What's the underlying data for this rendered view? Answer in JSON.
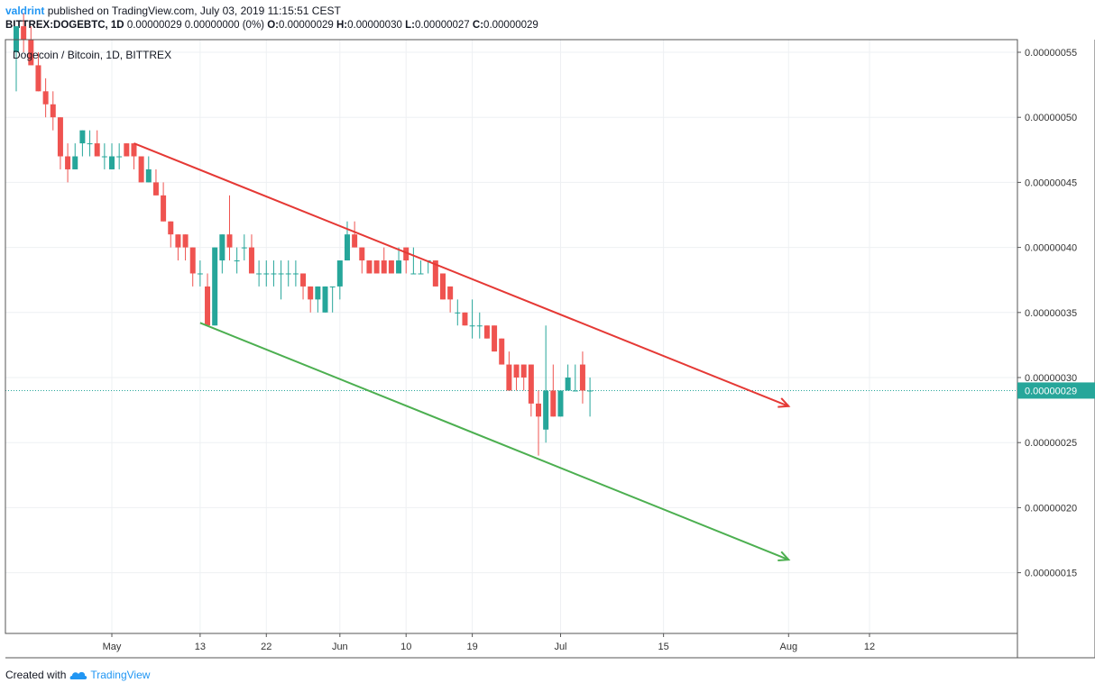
{
  "header": {
    "username": "valdrint",
    "published_text": "published on TradingView.com, July 03, 2019 11:15:51 CEST",
    "symbol": "BITTREX:DOGEBTC, 1D",
    "ohlc_text": "0.00000029 0.00000000 (0%)",
    "o_label": "O:",
    "o_value": "0.00000029",
    "h_label": "H:",
    "h_value": "0.00000030",
    "l_label": "L:",
    "l_value": "0.00000027",
    "c_label": "C:",
    "c_value": "0.00000029"
  },
  "footer": {
    "created_with": "Created with",
    "brand": "TradingView"
  },
  "chart_data": {
    "type": "candlestick",
    "title": "Dogecoin / Bitcoin, 1D, BITTREX",
    "colors": {
      "up": "#26a69a",
      "down": "#ef5350",
      "resistance": "#e53935",
      "support": "#4caf50",
      "grid": "#eef0f3",
      "axis": "#555555"
    },
    "y_axis": {
      "ticks": [
        "0.00000055",
        "0.00000050",
        "0.00000045",
        "0.00000040",
        "0.00000035",
        "0.00000030",
        "0.00000025",
        "0.00000020",
        "0.00000015"
      ],
      "ylim": [
        1e-07,
        5.7e-07
      ]
    },
    "x_axis": {
      "ticks": [
        "May",
        "13",
        "22",
        "Jun",
        "10",
        "19",
        "Jul",
        "15",
        "Aug",
        "12"
      ]
    },
    "last_price": {
      "value": 2.9e-07,
      "label": "0.00000029"
    },
    "candles": [
      [
        "2019-04-18",
        5.5e-07,
        5.7e-07,
        5.2e-07,
        5.7e-07
      ],
      [
        "2019-04-19",
        5.7e-07,
        5.8e-07,
        5.5e-07,
        5.6e-07
      ],
      [
        "2019-04-20",
        5.6e-07,
        5.7e-07,
        5.4e-07,
        5.4e-07
      ],
      [
        "2019-04-21",
        5.4e-07,
        5.5e-07,
        5.2e-07,
        5.2e-07
      ],
      [
        "2019-04-22",
        5.2e-07,
        5.3e-07,
        5e-07,
        5.1e-07
      ],
      [
        "2019-04-23",
        5.1e-07,
        5.2e-07,
        4.9e-07,
        5e-07
      ],
      [
        "2019-04-24",
        5e-07,
        5e-07,
        4.6e-07,
        4.7e-07
      ],
      [
        "2019-04-25",
        4.7e-07,
        4.8e-07,
        4.5e-07,
        4.6e-07
      ],
      [
        "2019-04-26",
        4.6e-07,
        4.8e-07,
        4.6e-07,
        4.7e-07
      ],
      [
        "2019-04-27",
        4.8e-07,
        4.9e-07,
        4.7e-07,
        4.9e-07
      ],
      [
        "2019-04-28",
        4.8e-07,
        4.9e-07,
        4.7e-07,
        4.8e-07
      ],
      [
        "2019-04-29",
        4.8e-07,
        4.9e-07,
        4.7e-07,
        4.7e-07
      ],
      [
        "2019-04-30",
        4.7e-07,
        4.8e-07,
        4.6e-07,
        4.7e-07
      ],
      [
        "2019-05-01",
        4.6e-07,
        4.8e-07,
        4.6e-07,
        4.7e-07
      ],
      [
        "2019-05-02",
        4.7e-07,
        4.8e-07,
        4.6e-07,
        4.7e-07
      ],
      [
        "2019-05-03",
        4.8e-07,
        4.8e-07,
        4.7e-07,
        4.7e-07
      ],
      [
        "2019-05-04",
        4.8e-07,
        4.8e-07,
        4.6e-07,
        4.7e-07
      ],
      [
        "2019-05-05",
        4.7e-07,
        4.7e-07,
        4.5e-07,
        4.5e-07
      ],
      [
        "2019-05-06",
        4.5e-07,
        4.7e-07,
        4.5e-07,
        4.6e-07
      ],
      [
        "2019-05-07",
        4.5e-07,
        4.6e-07,
        4.4e-07,
        4.4e-07
      ],
      [
        "2019-05-08",
        4.4e-07,
        4.5e-07,
        4.2e-07,
        4.2e-07
      ],
      [
        "2019-05-09",
        4.2e-07,
        4.2e-07,
        4e-07,
        4.1e-07
      ],
      [
        "2019-05-10",
        4.1e-07,
        4.1e-07,
        3.9e-07,
        4e-07
      ],
      [
        "2019-05-11",
        4.1e-07,
        4.1e-07,
        3.9e-07,
        4e-07
      ],
      [
        "2019-05-12",
        4e-07,
        4e-07,
        3.7e-07,
        3.8e-07
      ],
      [
        "2019-05-13",
        3.8e-07,
        3.9e-07,
        3.7e-07,
        3.8e-07
      ],
      [
        "2019-05-14",
        3.7e-07,
        3.8e-07,
        3.4e-07,
        3.4e-07
      ],
      [
        "2019-05-15",
        3.4e-07,
        4e-07,
        3.4e-07,
        4e-07
      ],
      [
        "2019-05-16",
        3.9e-07,
        4.1e-07,
        3.8e-07,
        4.1e-07
      ],
      [
        "2019-05-17",
        4.1e-07,
        4.4e-07,
        3.9e-07,
        4e-07
      ],
      [
        "2019-05-18",
        3.9e-07,
        4e-07,
        3.8e-07,
        3.9e-07
      ],
      [
        "2019-05-19",
        4e-07,
        4.1e-07,
        3.9e-07,
        4e-07
      ],
      [
        "2019-05-20",
        4e-07,
        4.1e-07,
        3.8e-07,
        3.8e-07
      ],
      [
        "2019-05-21",
        3.8e-07,
        3.9e-07,
        3.7e-07,
        3.8e-07
      ],
      [
        "2019-05-22",
        3.8e-07,
        3.9e-07,
        3.7e-07,
        3.8e-07
      ],
      [
        "2019-05-23",
        3.8e-07,
        3.9e-07,
        3.7e-07,
        3.8e-07
      ],
      [
        "2019-05-24",
        3.8e-07,
        3.9e-07,
        3.6e-07,
        3.8e-07
      ],
      [
        "2019-05-25",
        3.8e-07,
        3.9e-07,
        3.7e-07,
        3.8e-07
      ],
      [
        "2019-05-26",
        3.8e-07,
        3.9e-07,
        3.7e-07,
        3.8e-07
      ],
      [
        "2019-05-27",
        3.8e-07,
        3.8e-07,
        3.6e-07,
        3.7e-07
      ],
      [
        "2019-05-28",
        3.7e-07,
        3.7e-07,
        3.5e-07,
        3.6e-07
      ],
      [
        "2019-05-29",
        3.6e-07,
        3.7e-07,
        3.5e-07,
        3.7e-07
      ],
      [
        "2019-05-30",
        3.5e-07,
        3.7e-07,
        3.5e-07,
        3.7e-07
      ],
      [
        "2019-05-31",
        3.7e-07,
        3.7e-07,
        3.5e-07,
        3.7e-07
      ],
      [
        "2019-06-01",
        3.7e-07,
        3.9e-07,
        3.6e-07,
        3.9e-07
      ],
      [
        "2019-06-02",
        3.9e-07,
        4.2e-07,
        3.9e-07,
        4.1e-07
      ],
      [
        "2019-06-03",
        4.1e-07,
        4.2e-07,
        4e-07,
        4e-07
      ],
      [
        "2019-06-04",
        4e-07,
        4e-07,
        3.8e-07,
        3.9e-07
      ],
      [
        "2019-06-05",
        3.9e-07,
        3.9e-07,
        3.8e-07,
        3.8e-07
      ],
      [
        "2019-06-06",
        3.9e-07,
        3.9e-07,
        3.8e-07,
        3.8e-07
      ],
      [
        "2019-06-07",
        3.9e-07,
        4e-07,
        3.8e-07,
        3.8e-07
      ],
      [
        "2019-06-08",
        3.9e-07,
        3.9e-07,
        3.8e-07,
        3.8e-07
      ],
      [
        "2019-06-09",
        3.8e-07,
        4e-07,
        3.8e-07,
        3.9e-07
      ],
      [
        "2019-06-10",
        4e-07,
        4e-07,
        3.8e-07,
        3.9e-07
      ],
      [
        "2019-06-11",
        3.8e-07,
        4e-07,
        3.8e-07,
        3.8e-07
      ],
      [
        "2019-06-12",
        3.8e-07,
        3.9e-07,
        3.8e-07,
        3.8e-07
      ],
      [
        "2019-06-13",
        3.9e-07,
        3.9e-07,
        3.8e-07,
        3.9e-07
      ],
      [
        "2019-06-14",
        3.9e-07,
        3.9e-07,
        3.7e-07,
        3.7e-07
      ],
      [
        "2019-06-15",
        3.8e-07,
        3.8e-07,
        3.6e-07,
        3.6e-07
      ],
      [
        "2019-06-16",
        3.7e-07,
        3.7e-07,
        3.5e-07,
        3.6e-07
      ],
      [
        "2019-06-17",
        3.5e-07,
        3.6e-07,
        3.4e-07,
        3.5e-07
      ],
      [
        "2019-06-18",
        3.5e-07,
        3.5e-07,
        3.4e-07,
        3.4e-07
      ],
      [
        "2019-06-19",
        3.4e-07,
        3.6e-07,
        3.3e-07,
        3.4e-07
      ],
      [
        "2019-06-20",
        3.4e-07,
        3.5e-07,
        3.3e-07,
        3.4e-07
      ],
      [
        "2019-06-21",
        3.4e-07,
        3.4e-07,
        3.3e-07,
        3.3e-07
      ],
      [
        "2019-06-22",
        3.4e-07,
        3.4e-07,
        3.2e-07,
        3.2e-07
      ],
      [
        "2019-06-23",
        3.3e-07,
        3.3e-07,
        3.1e-07,
        3.1e-07
      ],
      [
        "2019-06-24",
        3.1e-07,
        3.2e-07,
        2.9e-07,
        2.9e-07
      ],
      [
        "2019-06-25",
        3.1e-07,
        3.1e-07,
        2.9e-07,
        3e-07
      ],
      [
        "2019-06-26",
        3.1e-07,
        3.1e-07,
        2.9e-07,
        3e-07
      ],
      [
        "2019-06-27",
        3.1e-07,
        3.1e-07,
        2.7e-07,
        2.8e-07
      ],
      [
        "2019-06-28",
        2.8e-07,
        2.9e-07,
        2.4e-07,
        2.7e-07
      ],
      [
        "2019-06-29",
        2.6e-07,
        3.4e-07,
        2.5e-07,
        2.9e-07
      ],
      [
        "2019-06-30",
        2.9e-07,
        3.1e-07,
        2.7e-07,
        2.7e-07
      ],
      [
        "2019-07-01",
        2.7e-07,
        2.9e-07,
        2.7e-07,
        2.9e-07
      ],
      [
        "2019-07-02",
        2.9e-07,
        3.1e-07,
        2.9e-07,
        3e-07
      ],
      [
        "2019-07-03",
        2.9e-07,
        3.1e-07,
        2.9e-07,
        2.9e-07
      ],
      [
        "2019-07-04",
        3.1e-07,
        3.2e-07,
        2.8e-07,
        2.9e-07
      ],
      [
        "2019-07-05",
        2.9e-07,
        3e-07,
        2.7e-07,
        2.9e-07
      ]
    ],
    "trendlines": [
      {
        "name": "resistance",
        "color": "#e53935",
        "start": [
          "2019-05-04",
          4.8e-07
        ],
        "end": [
          "2019-08-01",
          2.78e-07
        ]
      },
      {
        "name": "support",
        "color": "#4caf50",
        "start": [
          "2019-05-13",
          3.42e-07
        ],
        "end": [
          "2019-08-01",
          1.6e-07
        ]
      }
    ]
  }
}
